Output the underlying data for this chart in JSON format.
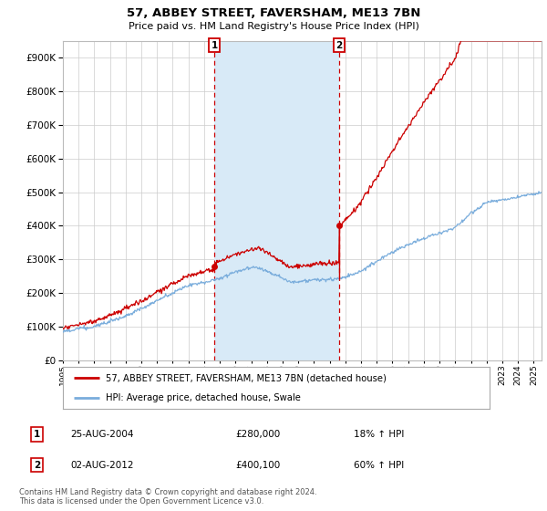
{
  "title": "57, ABBEY STREET, FAVERSHAM, ME13 7BN",
  "subtitle": "Price paid vs. HM Land Registry's House Price Index (HPI)",
  "hpi_label": "HPI: Average price, detached house, Swale",
  "property_label": "57, ABBEY STREET, FAVERSHAM, ME13 7BN (detached house)",
  "sale1_date": "25-AUG-2004",
  "sale1_price": "£280,000",
  "sale1_hpi": "18% ↑ HPI",
  "sale2_date": "02-AUG-2012",
  "sale2_price": "£400,100",
  "sale2_hpi": "60% ↑ HPI",
  "footer": "Contains HM Land Registry data © Crown copyright and database right 2024.\nThis data is licensed under the Open Government Licence v3.0.",
  "ylim": [
    0,
    950000
  ],
  "hpi_color": "#7aaddc",
  "property_color": "#cc0000",
  "sale_marker_color": "#cc0000",
  "dashed_line_color": "#cc0000",
  "shaded_color": "#d8eaf7",
  "legend_box_color": "#cc0000",
  "background_color": "#ffffff",
  "grid_color": "#cccccc",
  "sale1_x": 2004.65,
  "sale1_y": 280000,
  "sale2_x": 2012.6,
  "sale2_y": 400100,
  "xmin": 1995,
  "xmax": 2025.5
}
